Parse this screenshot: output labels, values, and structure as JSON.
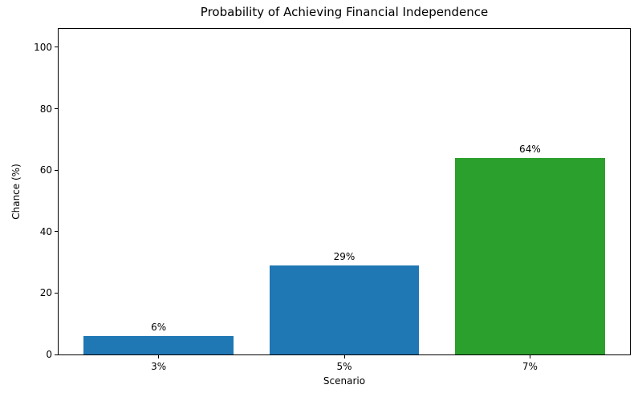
{
  "chart_data": {
    "type": "bar",
    "title": "Probability of Achieving Financial Independence",
    "xlabel": "Scenario",
    "ylabel": "Chance (%)",
    "categories": [
      "3%",
      "5%",
      "7%"
    ],
    "values": [
      6,
      29,
      64
    ],
    "value_labels": [
      "6%",
      "29%",
      "64%"
    ],
    "bar_colors": [
      "#1f77b4",
      "#1f77b4",
      "#2ca02c"
    ],
    "ylim": [
      0,
      106
    ],
    "yticks": [
      0,
      20,
      40,
      60,
      80,
      100
    ],
    "grid": false,
    "legend_position": "none",
    "colors": {
      "axis": "#000000",
      "background": "#ffffff",
      "text": "#000000"
    }
  }
}
